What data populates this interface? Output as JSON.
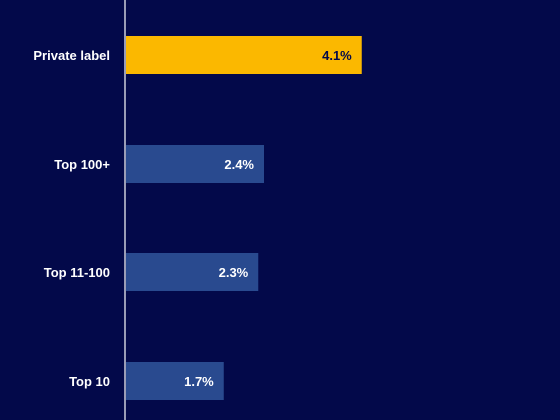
{
  "chart_data": {
    "type": "bar",
    "orientation": "horizontal",
    "categories": [
      "Private label",
      "Top 100+",
      "Top 11-100",
      "Top 10"
    ],
    "values": [
      4.1,
      2.4,
      2.3,
      1.7
    ],
    "value_labels": [
      "4.1%",
      "2.4%",
      "2.3%",
      "1.7%"
    ],
    "unit": "%",
    "xlim": [
      0,
      8.0
    ],
    "grid": false,
    "legend": "none",
    "colors": {
      "background": "#03094a",
      "highlight_bar": "#fbb800",
      "bar": "#294a8f",
      "axis": "#ffffff",
      "highlight_label": "#03094a",
      "label": "#ffffff"
    }
  }
}
